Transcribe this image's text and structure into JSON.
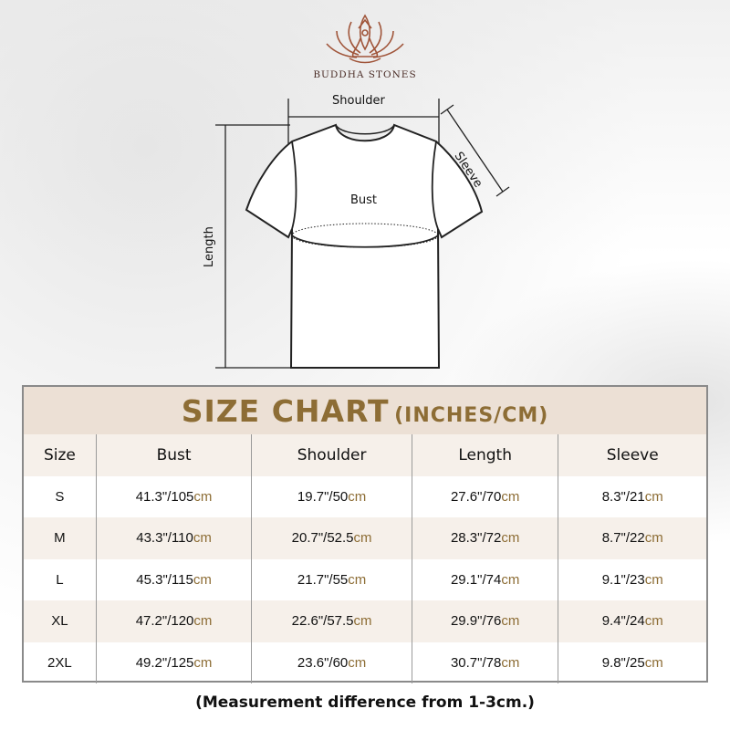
{
  "brand": {
    "name": "BUDDHA STONES",
    "logo_icon": "lotus-meditation-icon",
    "colors": {
      "logo": "#a0553a",
      "accent": "#8d6d35",
      "title_band": "#ece0d5",
      "alt_row": "#f6f0ea"
    }
  },
  "diagram": {
    "shoulder": "Shoulder",
    "sleeve": "Sleeve",
    "bust": "Bust",
    "length": "Length"
  },
  "table": {
    "title": "SIZE CHART",
    "title_units": "(INCHES/CM)",
    "headers": [
      "Size",
      "Bust",
      "Shoulder",
      "Length",
      "Sleeve"
    ],
    "rows": [
      {
        "size": "S",
        "cells": [
          {
            "v": "41.3\"/105",
            "u": "cm"
          },
          {
            "v": "19.7\"/50",
            "u": "cm"
          },
          {
            "v": "27.6\"/70",
            "u": "cm"
          },
          {
            "v": "8.3\"/21",
            "u": "cm"
          }
        ]
      },
      {
        "size": "M",
        "cells": [
          {
            "v": "43.3\"/110",
            "u": "cm"
          },
          {
            "v": "20.7\"/52.5",
            "u": "cm"
          },
          {
            "v": "28.3\"/72",
            "u": "cm"
          },
          {
            "v": "8.7\"/22",
            "u": "cm"
          }
        ]
      },
      {
        "size": "L",
        "cells": [
          {
            "v": "45.3\"/115",
            "u": "cm"
          },
          {
            "v": "21.7\"/55",
            "u": "cm"
          },
          {
            "v": "29.1\"/74",
            "u": "cm"
          },
          {
            "v": "9.1\"/23",
            "u": "cm"
          }
        ]
      },
      {
        "size": "XL",
        "cells": [
          {
            "v": "47.2\"/120",
            "u": "cm"
          },
          {
            "v": "22.6\"/57.5",
            "u": "cm"
          },
          {
            "v": "29.9\"/76",
            "u": "cm"
          },
          {
            "v": "9.4\"/24",
            "u": "cm"
          }
        ]
      },
      {
        "size": "2XL",
        "cells": [
          {
            "v": "49.2\"/125",
            "u": "cm"
          },
          {
            "v": "23.6\"/60",
            "u": "cm"
          },
          {
            "v": "30.7\"/78",
            "u": "cm"
          },
          {
            "v": "9.8\"/25",
            "u": "cm"
          }
        ]
      }
    ]
  },
  "note": "(Measurement difference from 1-3cm.)"
}
